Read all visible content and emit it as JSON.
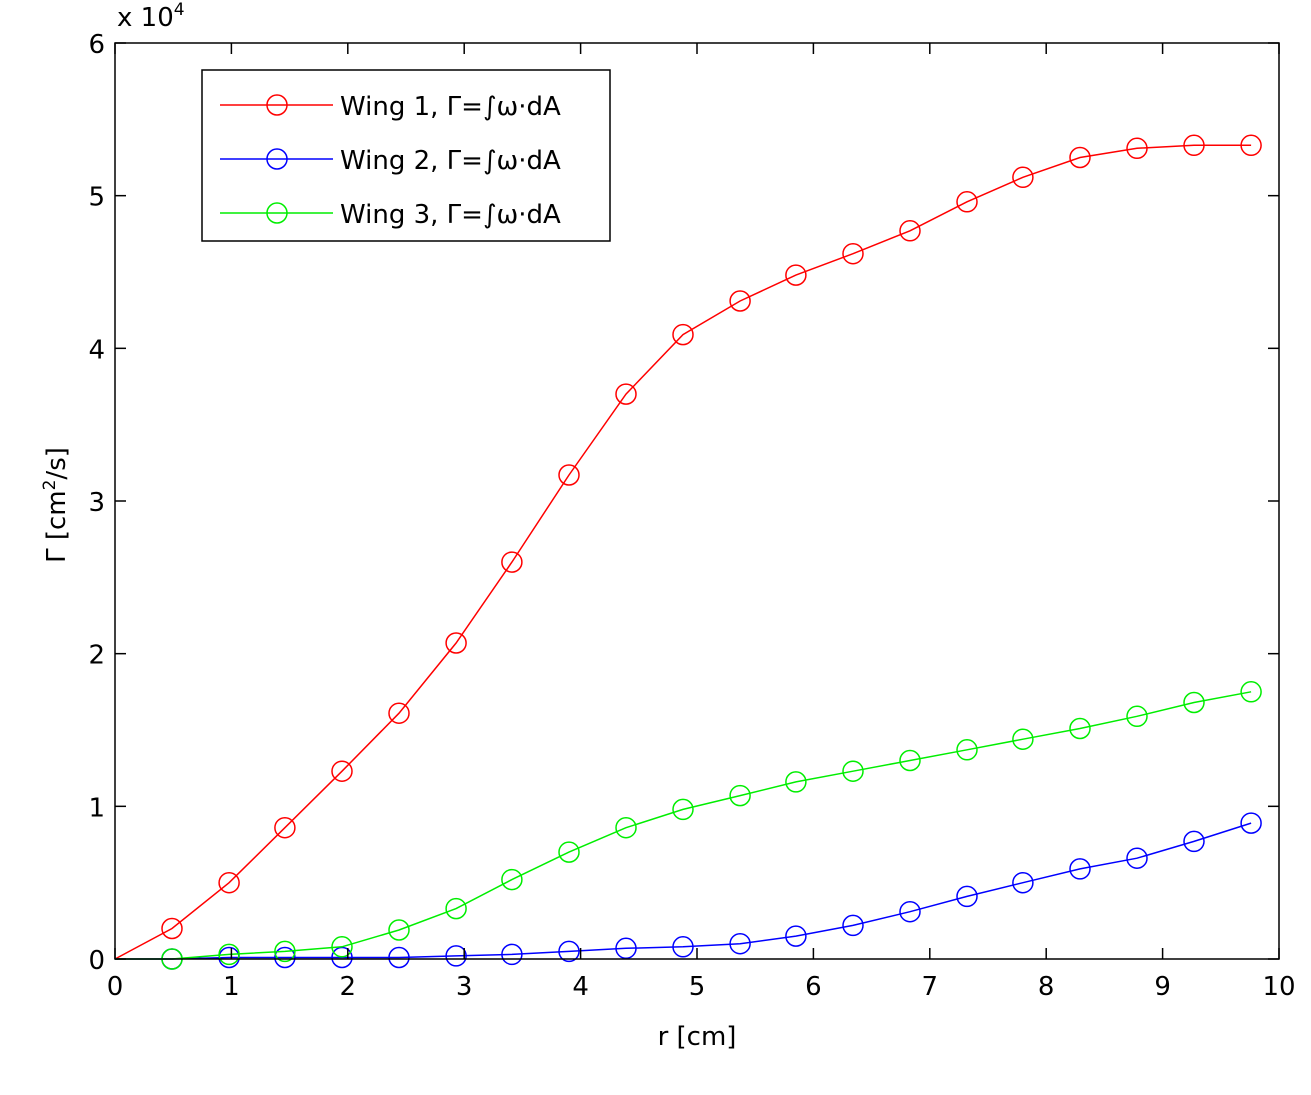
{
  "chart_data": {
    "type": "line",
    "title": "",
    "xlabel": "r [cm]",
    "ylabel": "Γ [cm²/s]",
    "ylabel_parts": {
      "before": "Γ [cm",
      "sup": "2",
      "after": "/s]"
    },
    "y_scale_factor_label": {
      "base": "x 10",
      "exponent": "4"
    },
    "xlim": [
      0,
      10
    ],
    "ylim": [
      0,
      6
    ],
    "x_ticks": [
      0,
      1,
      2,
      3,
      4,
      5,
      6,
      7,
      8,
      9,
      10
    ],
    "y_ticks": [
      0,
      1,
      2,
      3,
      4,
      5,
      6
    ],
    "grid": false,
    "legend_position": "top-left",
    "x": [
      0.49,
      0.98,
      1.46,
      1.95,
      2.44,
      2.93,
      3.41,
      3.9,
      4.39,
      4.88,
      5.37,
      5.85,
      6.34,
      6.83,
      7.32,
      7.8,
      8.29,
      8.78,
      9.27,
      9.76
    ],
    "series": [
      {
        "name": "Wing 1, Γ=∫ω·dA",
        "color": "#ff0000",
        "line_start": [
          0,
          0
        ],
        "values": [
          0.2,
          0.5,
          0.86,
          1.23,
          1.61,
          2.07,
          2.6,
          3.17,
          3.7,
          4.09,
          4.31,
          4.48,
          4.62,
          4.77,
          4.96,
          5.12,
          5.25,
          5.31,
          5.33,
          5.33
        ]
      },
      {
        "name": "Wing 2, Γ=∫ω·dA",
        "color": "#0000ff",
        "line_start": [
          0,
          0
        ],
        "values": [
          0.0,
          0.01,
          0.01,
          0.01,
          0.01,
          0.02,
          0.03,
          0.05,
          0.07,
          0.08,
          0.1,
          0.15,
          0.22,
          0.31,
          0.41,
          0.5,
          0.59,
          0.66,
          0.77,
          0.89
        ]
      },
      {
        "name": "Wing 3, Γ=∫ω·dA",
        "color": "#00ee00",
        "line_start": [
          0,
          0
        ],
        "values": [
          0.0,
          0.03,
          0.05,
          0.08,
          0.19,
          0.33,
          0.52,
          0.7,
          0.86,
          0.98,
          1.07,
          1.16,
          1.23,
          1.3,
          1.37,
          1.44,
          1.51,
          1.59,
          1.68,
          1.75
        ]
      }
    ]
  }
}
